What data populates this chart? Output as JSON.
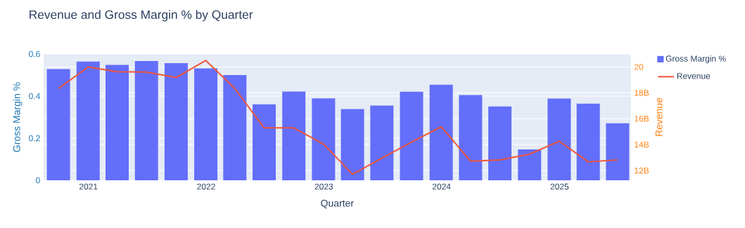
{
  "chart_data": {
    "type": "bar",
    "title": "Revenue and Gross Margin % by Quarter",
    "xlabel": "Quarter",
    "ylabel": "Gross Margin %",
    "y2label": "Revenue",
    "x": [
      "2020-09-30",
      "2020-12-31",
      "2021-03-31",
      "2021-06-30",
      "2021-09-30",
      "2021-12-31",
      "2022-03-31",
      "2022-06-30",
      "2022-09-30",
      "2022-12-31",
      "2023-03-31",
      "2023-06-30",
      "2023-09-30",
      "2023-12-31",
      "2024-03-31",
      "2024-06-30",
      "2024-09-30",
      "2024-12-31",
      "2025-03-31",
      "2025-06-30"
    ],
    "series": [
      {
        "name": "Gross Margin %",
        "color": "#636efa",
        "values": [
          0.528,
          0.564,
          0.548,
          0.567,
          0.557,
          0.532,
          0.5,
          0.361,
          0.422,
          0.389,
          0.338,
          0.355,
          0.421,
          0.454,
          0.405,
          0.351,
          0.147,
          0.388,
          0.364,
          0.271
        ]
      },
      {
        "name": "Revenue",
        "type": "line",
        "axis": "y2",
        "color": "#ef553b",
        "values": [
          18.33,
          20.0,
          19.63,
          19.6,
          19.18,
          20.5,
          18.33,
          15.29,
          15.29,
          14.04,
          11.71,
          12.96,
          14.19,
          15.38,
          12.72,
          12.81,
          13.26,
          14.26,
          12.67,
          12.81
        ]
      }
    ],
    "xlim": [
      "2020-08-15",
      "2025-08-10"
    ],
    "xticks": [
      {
        "value": "2021",
        "label": "2021"
      },
      {
        "value": "2022",
        "label": "2022"
      },
      {
        "value": "2023",
        "label": "2023"
      },
      {
        "value": "2024",
        "label": "2024"
      },
      {
        "value": "2025",
        "label": "2025"
      }
    ],
    "ylim": [
      0,
      0.6
    ],
    "yticks": [
      0,
      0.2,
      0.4,
      0.6
    ],
    "y2lim": [
      11.24,
      21.0
    ],
    "y2ticks": [
      {
        "value": 12,
        "label": "12B"
      },
      {
        "value": 14,
        "label": "14B"
      },
      {
        "value": 16,
        "label": "16B"
      },
      {
        "value": 18,
        "label": "18B"
      },
      {
        "value": 20,
        "label": "20"
      }
    ],
    "grid": "y",
    "legend": "top right"
  }
}
